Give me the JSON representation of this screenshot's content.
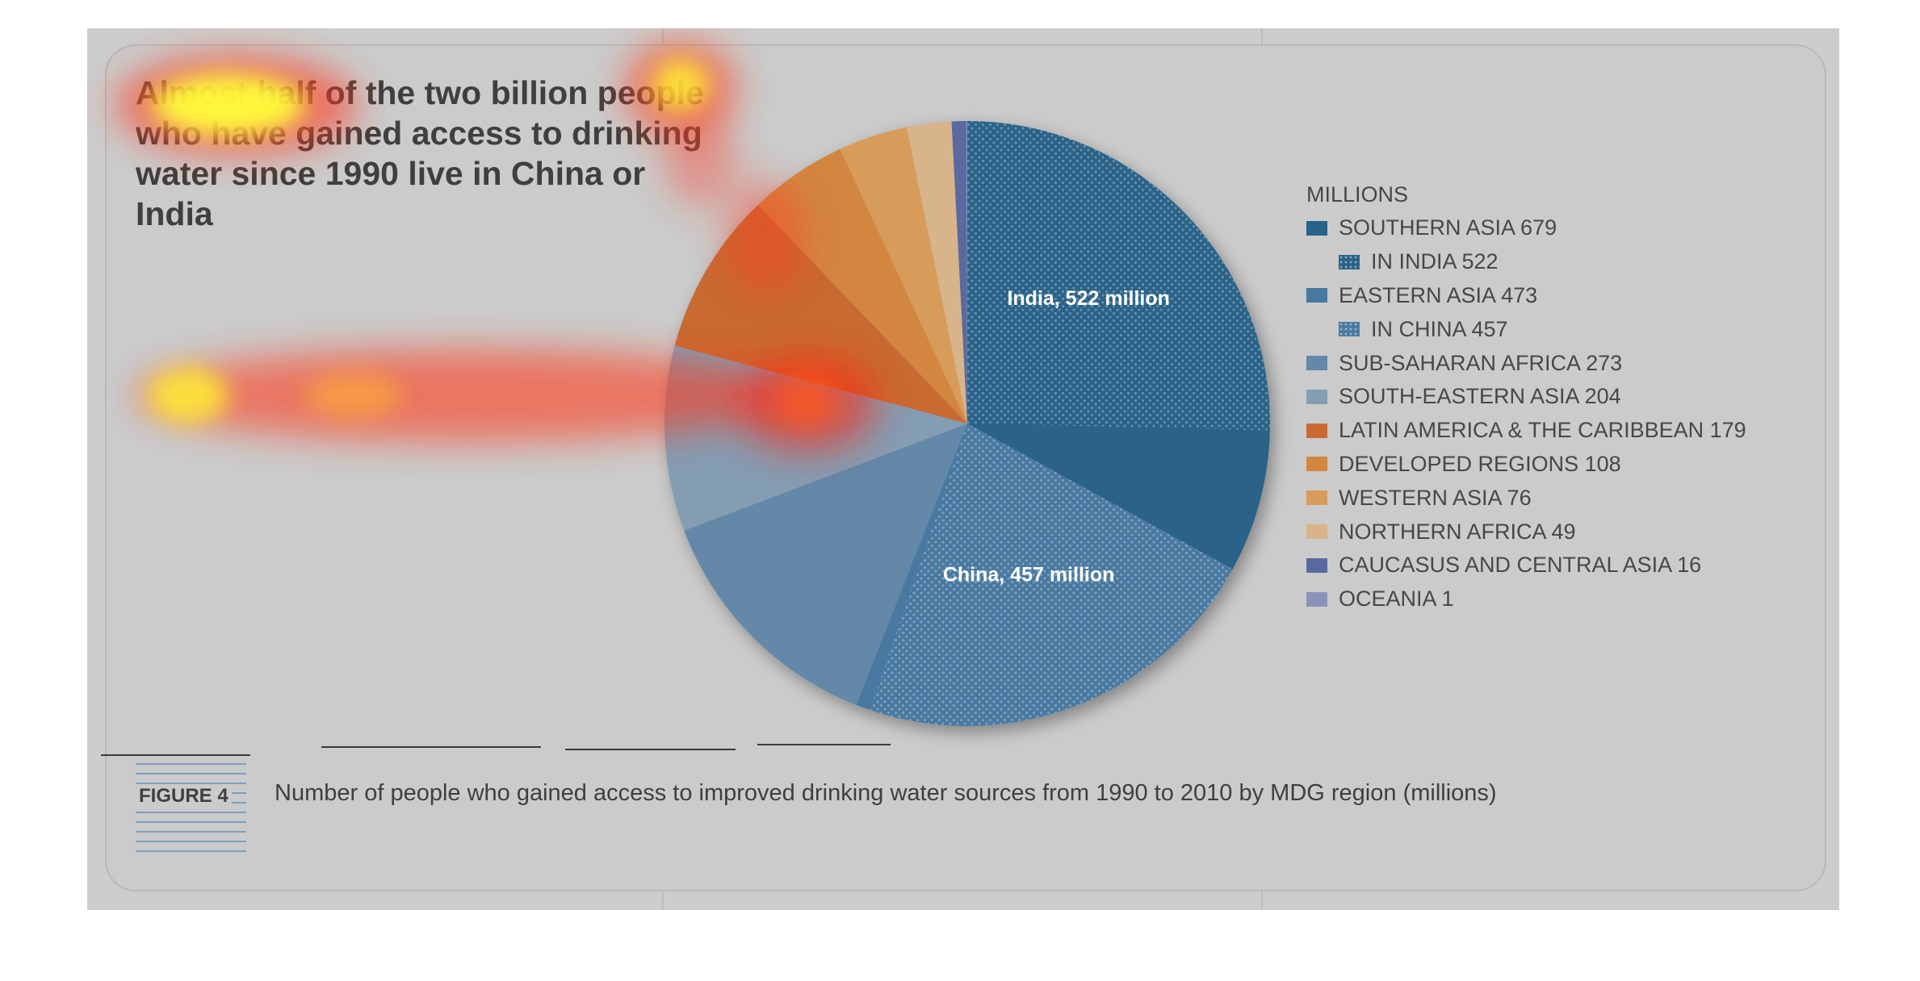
{
  "headline": "Almost half of the two billion people who have gained access to drinking water since 1990 live in China or India",
  "figure_label": "FIGURE 4",
  "caption": "Number of people who gained access to improved drinking water sources from 1990 to 2010 by MDG region (millions)",
  "legend": {
    "title": "MILLIONS",
    "items": [
      {
        "label": "SOUTHERN ASIA 679",
        "color": "#2a6288",
        "sub": false,
        "pattern": false
      },
      {
        "label": "IN INDIA 522",
        "color": "#2a6288",
        "sub": true,
        "pattern": true
      },
      {
        "label": "EASTERN ASIA 473",
        "color": "#4a79a0",
        "sub": false,
        "pattern": false
      },
      {
        "label": "IN CHINA 457",
        "color": "#4a79a0",
        "sub": true,
        "pattern": true
      },
      {
        "label": "SUB-SAHARAN AFRICA 273",
        "color": "#6388a8",
        "sub": false,
        "pattern": false
      },
      {
        "label": "SOUTH-EASTERN ASIA 204",
        "color": "#859db3",
        "sub": false,
        "pattern": false
      },
      {
        "label": "LATIN AMERICA & THE CARIBBEAN 179",
        "color": "#c86a33",
        "sub": false,
        "pattern": false
      },
      {
        "label": "DEVELOPED REGIONS 108",
        "color": "#d2863f",
        "sub": false,
        "pattern": false
      },
      {
        "label": "WESTERN ASIA 76",
        "color": "#d89c5a",
        "sub": false,
        "pattern": false
      },
      {
        "label": "NORTHERN AFRICA 49",
        "color": "#d8b48b",
        "sub": false,
        "pattern": false
      },
      {
        "label": "CAUCASUS AND CENTRAL ASIA 16",
        "color": "#5a6aa0",
        "sub": false,
        "pattern": false
      },
      {
        "label": "OCEANIA 1",
        "color": "#8a92b8",
        "sub": false,
        "pattern": false
      }
    ]
  },
  "chart_data": {
    "type": "pie",
    "title": "Almost half of the two billion people who have gained access to drinking water since 1990 live in China or India",
    "unit": "MILLIONS",
    "slices": [
      {
        "name": "SOUTHERN ASIA",
        "value": 679,
        "color": "#2a6288",
        "sub": {
          "name": "IN INDIA",
          "value": 522,
          "label": "India, 522 million"
        }
      },
      {
        "name": "EASTERN ASIA",
        "value": 473,
        "color": "#4a79a0",
        "sub": {
          "name": "IN CHINA",
          "value": 457,
          "label": "China, 457 million"
        }
      },
      {
        "name": "SUB-SAHARAN AFRICA",
        "value": 273,
        "color": "#6388a8"
      },
      {
        "name": "SOUTH-EASTERN ASIA",
        "value": 204,
        "color": "#859db3"
      },
      {
        "name": "LATIN AMERICA & THE CARIBBEAN",
        "value": 179,
        "color": "#c86a33"
      },
      {
        "name": "DEVELOPED REGIONS",
        "value": 108,
        "color": "#d2863f"
      },
      {
        "name": "WESTERN ASIA",
        "value": 76,
        "color": "#d89c5a"
      },
      {
        "name": "NORTHERN AFRICA",
        "value": 49,
        "color": "#d8b48b"
      },
      {
        "name": "CAUCASUS AND CENTRAL ASIA",
        "value": 16,
        "color": "#5a6aa0"
      },
      {
        "name": "OCEANIA",
        "value": 1,
        "color": "#8a92b8"
      }
    ]
  }
}
